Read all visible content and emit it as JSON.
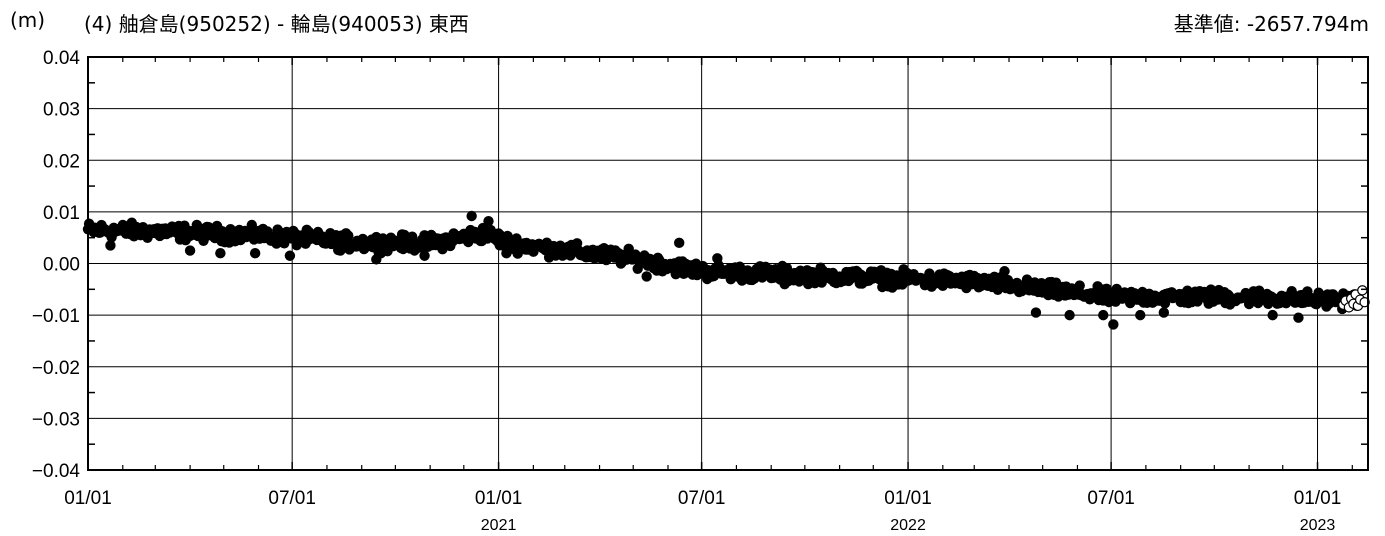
{
  "header": {
    "unit": "(m)",
    "title": "(4) 舳倉島(950252) - 輪島(940053) 東西",
    "baseline": "基準値: -2657.794m"
  },
  "chart_data": {
    "type": "scatter",
    "title": "(4) 舳倉島(950252) - 輪島(940053) 東西",
    "ylabel": "(m)",
    "reference_value": "基準値: -2657.794m",
    "ylim": [
      -0.04,
      0.04
    ],
    "xlim": [
      "2020-01-01",
      "2023-02-15"
    ],
    "grid": true,
    "y_ticks": [
      "0.04",
      "0.03",
      "0.02",
      "0.01",
      "0.00",
      "-0.01",
      "-0.02",
      "-0.03",
      "-0.04"
    ],
    "x_ticks": [
      {
        "date": "2020-01-01",
        "label": "01/01",
        "year": ""
      },
      {
        "date": "2020-07-01",
        "label": "07/01",
        "year": ""
      },
      {
        "date": "2021-01-01",
        "label": "01/01",
        "year": "2021"
      },
      {
        "date": "2021-07-01",
        "label": "07/01",
        "year": ""
      },
      {
        "date": "2022-01-01",
        "label": "01/01",
        "year": "2022"
      },
      {
        "date": "2022-07-01",
        "label": "07/01",
        "year": ""
      },
      {
        "date": "2023-01-01",
        "label": "01/01",
        "year": "2023"
      }
    ],
    "series": [
      {
        "style": "filled",
        "color": "#000000",
        "trend": [
          [
            "2020-01-01",
            0.0065
          ],
          [
            "2020-03-01",
            0.0062
          ],
          [
            "2020-06-01",
            0.0055
          ],
          [
            "2020-09-01",
            0.004
          ],
          [
            "2020-11-01",
            0.004
          ],
          [
            "2020-12-20",
            0.0058
          ],
          [
            "2021-01-10",
            0.004
          ],
          [
            "2021-03-01",
            0.0025
          ],
          [
            "2021-05-01",
            0.001
          ],
          [
            "2021-07-01",
            -0.0015
          ],
          [
            "2021-09-01",
            -0.002
          ],
          [
            "2021-11-01",
            -0.0025
          ],
          [
            "2022-01-01",
            -0.003
          ],
          [
            "2022-03-01",
            -0.0035
          ],
          [
            "2022-05-01",
            -0.005
          ],
          [
            "2022-07-01",
            -0.0065
          ],
          [
            "2022-09-01",
            -0.0065
          ],
          [
            "2022-11-01",
            -0.0065
          ],
          [
            "2023-01-01",
            -0.007
          ],
          [
            "2023-02-05",
            -0.007
          ]
        ],
        "scatter_spread": 0.0011,
        "outliers": [
          [
            "2020-01-21",
            0.0035
          ],
          [
            "2020-04-01",
            0.0025
          ],
          [
            "2020-04-28",
            0.002
          ],
          [
            "2020-05-29",
            0.002
          ],
          [
            "2020-06-29",
            0.0015
          ],
          [
            "2020-08-13",
            0.0025
          ],
          [
            "2020-09-14",
            0.0008
          ],
          [
            "2020-10-27",
            0.0015
          ],
          [
            "2020-12-08",
            0.0092
          ],
          [
            "2020-12-23",
            0.0082
          ],
          [
            "2021-01-08",
            0.002
          ],
          [
            "2021-05-13",
            -0.0025
          ],
          [
            "2021-06-11",
            0.004
          ],
          [
            "2021-07-15",
            0.001
          ],
          [
            "2021-09-13",
            -0.004
          ],
          [
            "2022-01-22",
            -0.0045
          ],
          [
            "2022-03-28",
            -0.0015
          ],
          [
            "2022-04-25",
            -0.0095
          ],
          [
            "2022-05-25",
            -0.01
          ],
          [
            "2022-06-24",
            -0.01
          ],
          [
            "2022-07-03",
            -0.0118
          ],
          [
            "2022-07-27",
            -0.01
          ],
          [
            "2022-08-17",
            -0.0095
          ],
          [
            "2022-11-22",
            -0.01
          ],
          [
            "2022-12-15",
            -0.0105
          ]
        ]
      },
      {
        "style": "open",
        "color": "#000000",
        "points": [
          [
            "2023-01-24",
            -0.008
          ],
          [
            "2023-01-26",
            -0.0072
          ],
          [
            "2023-01-29",
            -0.0085
          ],
          [
            "2023-01-31",
            -0.0068
          ],
          [
            "2023-02-02",
            -0.0078
          ],
          [
            "2023-02-04",
            -0.006
          ],
          [
            "2023-02-06",
            -0.0082
          ],
          [
            "2023-02-08",
            -0.007
          ],
          [
            "2023-02-10",
            -0.0052
          ],
          [
            "2023-02-12",
            -0.0075
          ]
        ]
      }
    ]
  }
}
